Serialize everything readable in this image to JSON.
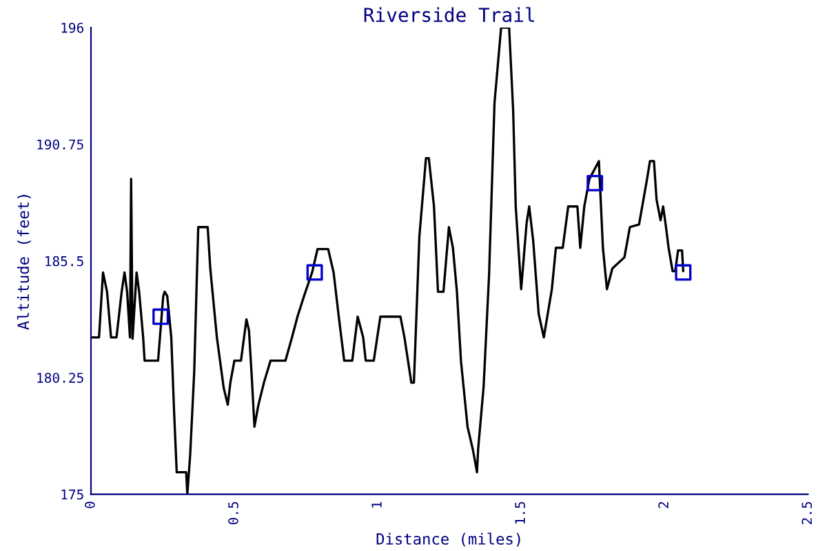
{
  "chart_data": {
    "type": "line",
    "title": "Riverside Trail",
    "xlabel": "Distance (miles)",
    "ylabel": "Altitude (feet)",
    "xlim": [
      0,
      2.5
    ],
    "xticks": [
      0,
      0.5,
      1,
      1.5,
      2,
      2.5
    ],
    "ylim": [
      175,
      196
    ],
    "yticks": [
      175,
      180.25,
      185.5,
      190.75,
      196
    ],
    "grid": false,
    "legend": false,
    "series": [
      {
        "color": "#000000",
        "marker": "none",
        "line_style": "solid",
        "x": [
          0,
          0.028,
          0.042,
          0.056,
          0.07,
          0.089,
          0.107,
          0.117,
          0.126,
          0.136,
          0.14,
          0.145,
          0.159,
          0.168,
          0.182,
          0.187,
          0.234,
          0.252,
          0.257,
          0.266,
          0.28,
          0.29,
          0.299,
          0.332,
          0.336,
          0.346,
          0.36,
          0.374,
          0.407,
          0.416,
          0.439,
          0.463,
          0.477,
          0.486,
          0.5,
          0.523,
          0.542,
          0.551,
          0.561,
          0.57,
          0.584,
          0.603,
          0.626,
          0.678,
          0.701,
          0.72,
          0.743,
          0.771,
          0.79,
          0.827,
          0.846,
          0.864,
          0.883,
          0.911,
          0.93,
          0.949,
          0.958,
          0.986,
          1.009,
          1.079,
          1.093,
          1.117,
          1.126,
          1.145,
          1.168,
          1.178,
          1.196,
          1.21,
          1.229,
          1.248,
          1.262,
          1.276,
          1.29,
          1.313,
          1.332,
          1.346,
          1.35,
          1.369,
          1.388,
          1.407,
          1.43,
          1.458,
          1.472,
          1.481,
          1.5,
          1.519,
          1.528,
          1.542,
          1.561,
          1.579,
          1.607,
          1.621,
          1.645,
          1.664,
          1.696,
          1.706,
          1.72,
          1.738,
          1.771,
          1.785,
          1.799,
          1.818,
          1.86,
          1.879,
          1.911,
          1.939,
          1.949,
          1.963,
          1.972,
          1.986,
          1.995,
          2.005,
          2.014,
          2.028,
          2.037,
          2.047,
          2.061,
          2.065
        ],
        "values": [
          182.06,
          182.06,
          184.98,
          184.11,
          182.06,
          182.06,
          184.11,
          184.98,
          184.11,
          182.06,
          189.19,
          182.0,
          184.98,
          184.11,
          182.06,
          181.01,
          181.01,
          183.92,
          184.11,
          183.92,
          182.06,
          178.66,
          175.99,
          175.99,
          175.0,
          176.8,
          180.51,
          187.02,
          187.02,
          185.16,
          182.06,
          179.77,
          179.03,
          180.02,
          181.01,
          181.01,
          182.87,
          182.37,
          180.2,
          178.04,
          179.03,
          180.02,
          181.01,
          181.01,
          182.06,
          182.99,
          183.92,
          184.98,
          186.03,
          186.03,
          184.98,
          182.99,
          181.01,
          181.01,
          182.99,
          182.06,
          181.01,
          181.01,
          182.99,
          182.99,
          182.06,
          180.02,
          180.02,
          186.59,
          190.12,
          190.12,
          187.95,
          184.11,
          184.11,
          187.02,
          186.09,
          184.11,
          181.01,
          178.04,
          176.98,
          175.99,
          177.04,
          179.83,
          184.85,
          192.6,
          196,
          196,
          192.29,
          187.95,
          184.23,
          187.21,
          187.95,
          186.4,
          183.12,
          182.06,
          184.23,
          186.09,
          186.09,
          187.95,
          187.95,
          186.09,
          187.95,
          189.19,
          189.99,
          186.09,
          184.23,
          185.16,
          185.66,
          187.02,
          187.14,
          189.19,
          189.99,
          189.99,
          188.26,
          187.33,
          187.95,
          187.02,
          186.09,
          185.04,
          185.04,
          185.97,
          185.97,
          185.04
        ]
      },
      {
        "type": "scatter",
        "color": "#0000cc",
        "marker": "square",
        "x": [
          0.243,
          0.78,
          1.757,
          2.065
        ],
        "values": [
          182.99,
          184.98,
          189.0,
          184.98
        ]
      }
    ]
  }
}
